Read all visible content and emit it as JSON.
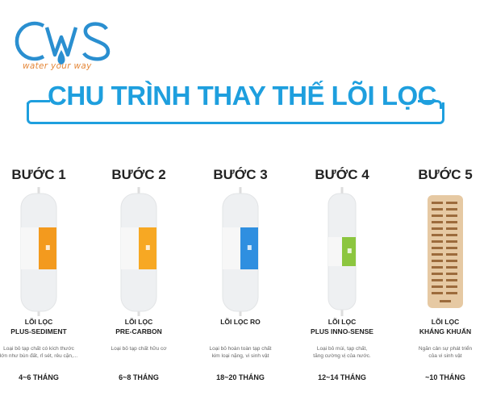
{
  "logo": {
    "brand": "CWS",
    "tagline": "water your way",
    "brand_color": "#2a8fd0",
    "tagline_color": "#e5883a"
  },
  "title": "CHU TRÌNH THAY THẾ LÕI LỌC",
  "accent_color": "#1e9fde",
  "steps": [
    {
      "step": "BƯỚC 1",
      "name_line1": "LÕI LỌC",
      "name_line2": "PLUS-SEDIMENT",
      "desc_line1": "Loại bỏ tạp chất có kích thước",
      "desc_line2": "lớn như bùn đất, rỉ sét, rêu cặn,...",
      "months": "4~6 THÁNG",
      "band_color": "#f39a1e",
      "label": "SEDIMENT"
    },
    {
      "step": "BƯỚC 2",
      "name_line1": "LÕI LỌC",
      "name_line2": "PRE-CARBON",
      "desc_line1": "Loại bỏ tạp chất hữu cơ",
      "desc_line2": "",
      "months": "6~8 THÁNG",
      "band_color": "#f7a823",
      "label": "PRE CARBON"
    },
    {
      "step": "BƯỚC 3",
      "name_line1": "LÕI LỌC RO",
      "name_line2": "",
      "desc_line1": "Loại bỏ hoàn toàn tạp chất",
      "desc_line2": "kim loại nặng, vi sinh vật",
      "months": "18~20 THÁNG",
      "band_color": "#2f8fe0",
      "label": "RO"
    },
    {
      "step": "BƯỚC 4",
      "name_line1": "LÕI LỌC",
      "name_line2": "PLUS INNO-SENSE",
      "desc_line1": "Loại bỏ mùi, tạp chất,",
      "desc_line2": "tăng cường vị của nước.",
      "months": "12~14 THÁNG",
      "band_color": "#8cc63f",
      "label": "INNO"
    },
    {
      "step": "BƯỚC 5",
      "name_line1": "LÕI LỌC",
      "name_line2": "KHÁNG KHUẨN",
      "desc_line1": "Ngăn cản sự phát triển",
      "desc_line2": "của vi sinh vật",
      "months": "~10 THÁNG",
      "band_color": "#e3c39b",
      "label": ""
    }
  ]
}
